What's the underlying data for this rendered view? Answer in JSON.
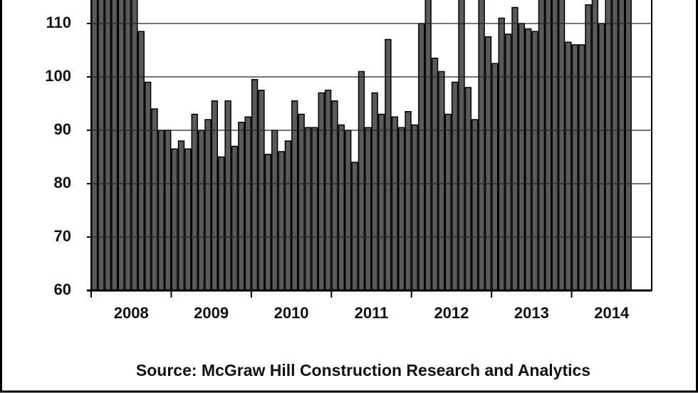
{
  "chart_data": {
    "type": "bar",
    "categories": [
      null,
      null,
      null,
      null,
      null,
      null,
      null,
      null,
      null,
      null,
      null,
      null,
      null,
      null,
      null,
      null,
      null,
      null,
      null,
      null,
      null,
      null,
      null,
      null,
      null,
      null,
      null,
      null,
      null,
      null,
      null,
      null,
      null,
      null,
      null,
      null,
      null,
      null,
      null,
      null,
      null,
      null,
      null,
      null,
      null,
      null,
      null,
      null,
      null,
      null,
      null,
      null,
      null,
      null,
      null,
      null,
      null,
      null,
      null,
      null,
      null,
      null,
      null,
      null,
      null,
      null,
      null,
      null,
      null,
      null,
      null,
      null,
      null,
      null,
      null,
      null,
      null,
      null,
      null,
      null,
      null,
      null,
      null,
      null
    ],
    "values": [
      115,
      115,
      115,
      115,
      115,
      115,
      115,
      108.5,
      99,
      94,
      90,
      90,
      86.5,
      88,
      86.5,
      93,
      90,
      92,
      95.5,
      85,
      95.5,
      87,
      91.5,
      92.5,
      99.5,
      97.5,
      85.5,
      90,
      86,
      88,
      95.5,
      93,
      90.5,
      90.5,
      97,
      97.5,
      95.5,
      91,
      90,
      84,
      101,
      90.5,
      97,
      93,
      107,
      92.5,
      90.5,
      93.5,
      91,
      110,
      115,
      103.5,
      101,
      93,
      99,
      115,
      98,
      92,
      115,
      107.5,
      102.5,
      111,
      108,
      113,
      110,
      109,
      108.5,
      115,
      115,
      115,
      115,
      106.5,
      106,
      106,
      113.5,
      115,
      110,
      115,
      115,
      115,
      115,
      null,
      null,
      null
    ],
    "year_labels": [
      "2008",
      "2009",
      "2010",
      "2011",
      "2012",
      "2013",
      "2014"
    ],
    "color": "#5a5a5a",
    "ylim": [
      60,
      114.4
    ],
    "yticks": [
      60,
      70,
      80,
      90,
      100,
      110
    ],
    "grid": true,
    "source": "Source:  McGraw Hill Construction Research and Analytics"
  }
}
